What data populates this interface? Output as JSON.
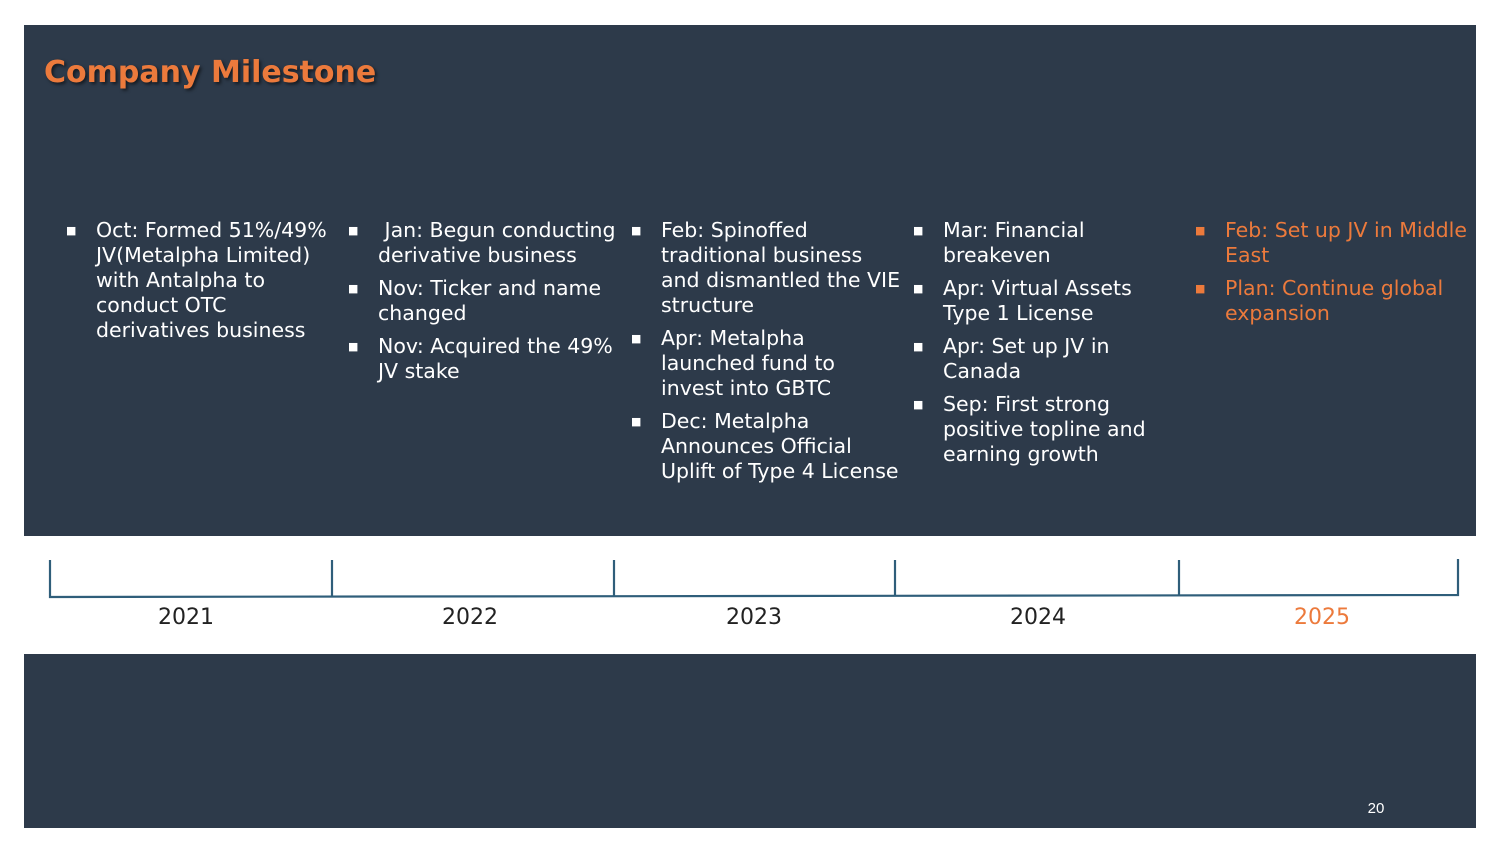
{
  "slide": {
    "title": "Company Milestone",
    "page_number": "20",
    "accent_color": "#ec7a3c",
    "background_color": "#2d3a4a",
    "line_color": "#2f5e7a"
  },
  "columns": [
    {
      "year": "2021",
      "items": [
        "Oct: Formed 51%/49% JV(Metalpha Limited) with Antalpha to conduct OTC derivatives business"
      ]
    },
    {
      "year": "2022",
      "items": [
        " Jan: Begun conducting derivative business",
        "Nov: Ticker and name changed",
        "Nov: Acquired the 49% JV stake"
      ]
    },
    {
      "year": "2023",
      "items": [
        "Feb: Spinoffed traditional business and dismantled the VIE structure",
        "Apr: Metalpha launched fund to invest into GBTC",
        "Dec: Metalpha Announces Official Uplift of Type 4 License"
      ]
    },
    {
      "year": "2024",
      "items": [
        "Mar: Financial breakeven",
        "Apr: Virtual Assets Type 1 License",
        "Apr: Set up JV in Canada",
        "Sep: First strong positive topline and earning growth"
      ]
    },
    {
      "year": "2025",
      "items": [
        "Feb: Set up JV in Middle East",
        "Plan: Continue global expansion"
      ]
    }
  ]
}
